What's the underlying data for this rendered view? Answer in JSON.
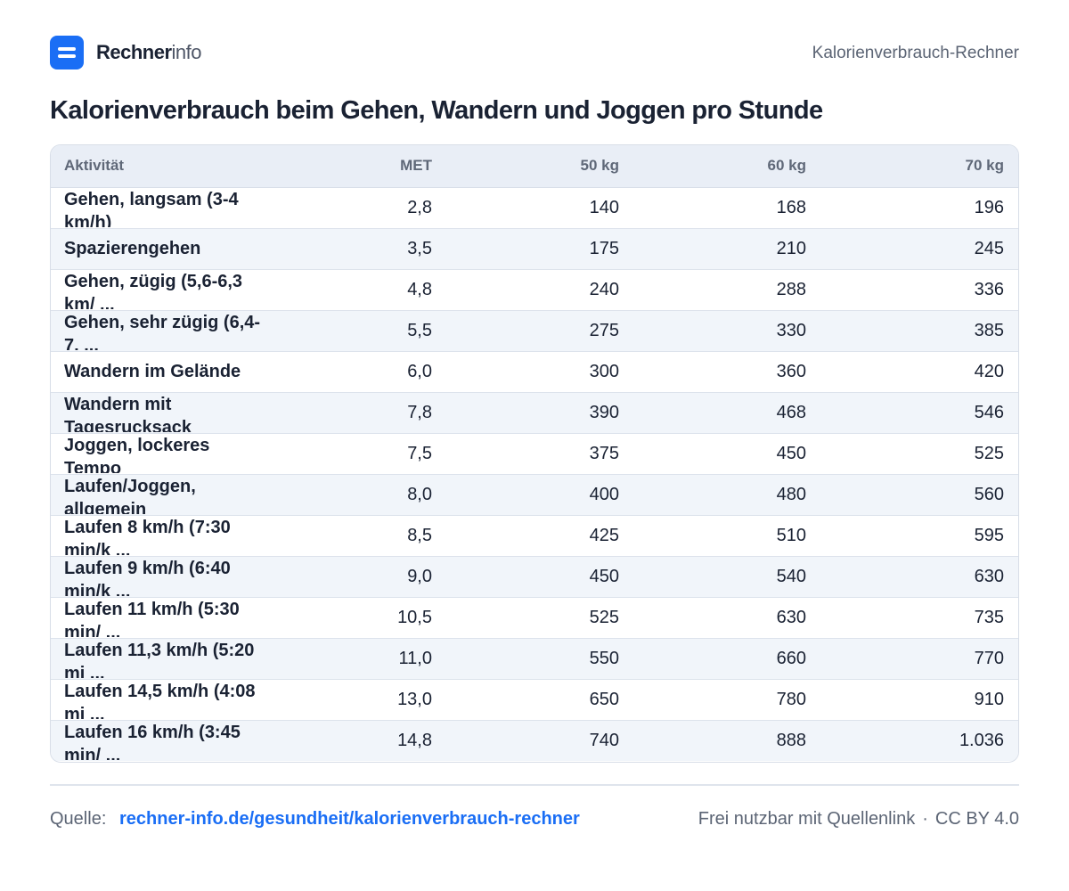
{
  "header": {
    "brand_strong": "Rechner",
    "brand_light": "info",
    "right_label": "Kalorienverbrauch-Rechner",
    "accent_color": "#1a6ef5"
  },
  "chart_data": {
    "type": "table",
    "title": "Kalorienverbrauch beim Gehen, Wandern und Joggen pro Stunde",
    "columns": [
      "Aktivität",
      "MET",
      "50 kg",
      "60 kg",
      "70 kg"
    ],
    "rows": [
      [
        "Gehen, langsam (3-4 km/h)",
        "2,8",
        "140",
        "168",
        "196"
      ],
      [
        "Spazierengehen",
        "3,5",
        "175",
        "210",
        "245"
      ],
      [
        "Gehen, zügig (5,6-6,3 km/ ...",
        "4,8",
        "240",
        "288",
        "336"
      ],
      [
        "Gehen, sehr zügig (6,4-7, ...",
        "5,5",
        "275",
        "330",
        "385"
      ],
      [
        "Wandern im Gelände",
        "6,0",
        "300",
        "360",
        "420"
      ],
      [
        "Wandern mit Tagesrucksack",
        "7,8",
        "390",
        "468",
        "546"
      ],
      [
        "Joggen, lockeres Tempo",
        "7,5",
        "375",
        "450",
        "525"
      ],
      [
        "Laufen/Joggen, allgemein",
        "8,0",
        "400",
        "480",
        "560"
      ],
      [
        "Laufen 8 km/h (7:30 min/k ...",
        "8,5",
        "425",
        "510",
        "595"
      ],
      [
        "Laufen 9 km/h (6:40 min/k ...",
        "9,0",
        "450",
        "540",
        "630"
      ],
      [
        "Laufen 11 km/h (5:30 min/ ...",
        "10,5",
        "525",
        "630",
        "735"
      ],
      [
        "Laufen 11,3 km/h (5:20 mi ...",
        "11,0",
        "550",
        "660",
        "770"
      ],
      [
        "Laufen 14,5 km/h (4:08 mi ...",
        "13,0",
        "650",
        "780",
        "910"
      ],
      [
        "Laufen 16 km/h (3:45 min/ ...",
        "14,8",
        "740",
        "888",
        "1.036"
      ]
    ]
  },
  "footer": {
    "source_label": "Quelle:",
    "source_link": "rechner-info.de/gesundheit/kalorienverbrauch-rechner",
    "license_text": "Frei nutzbar mit Quellenlink",
    "separator": "·",
    "license_name": "CC BY 4.0"
  }
}
